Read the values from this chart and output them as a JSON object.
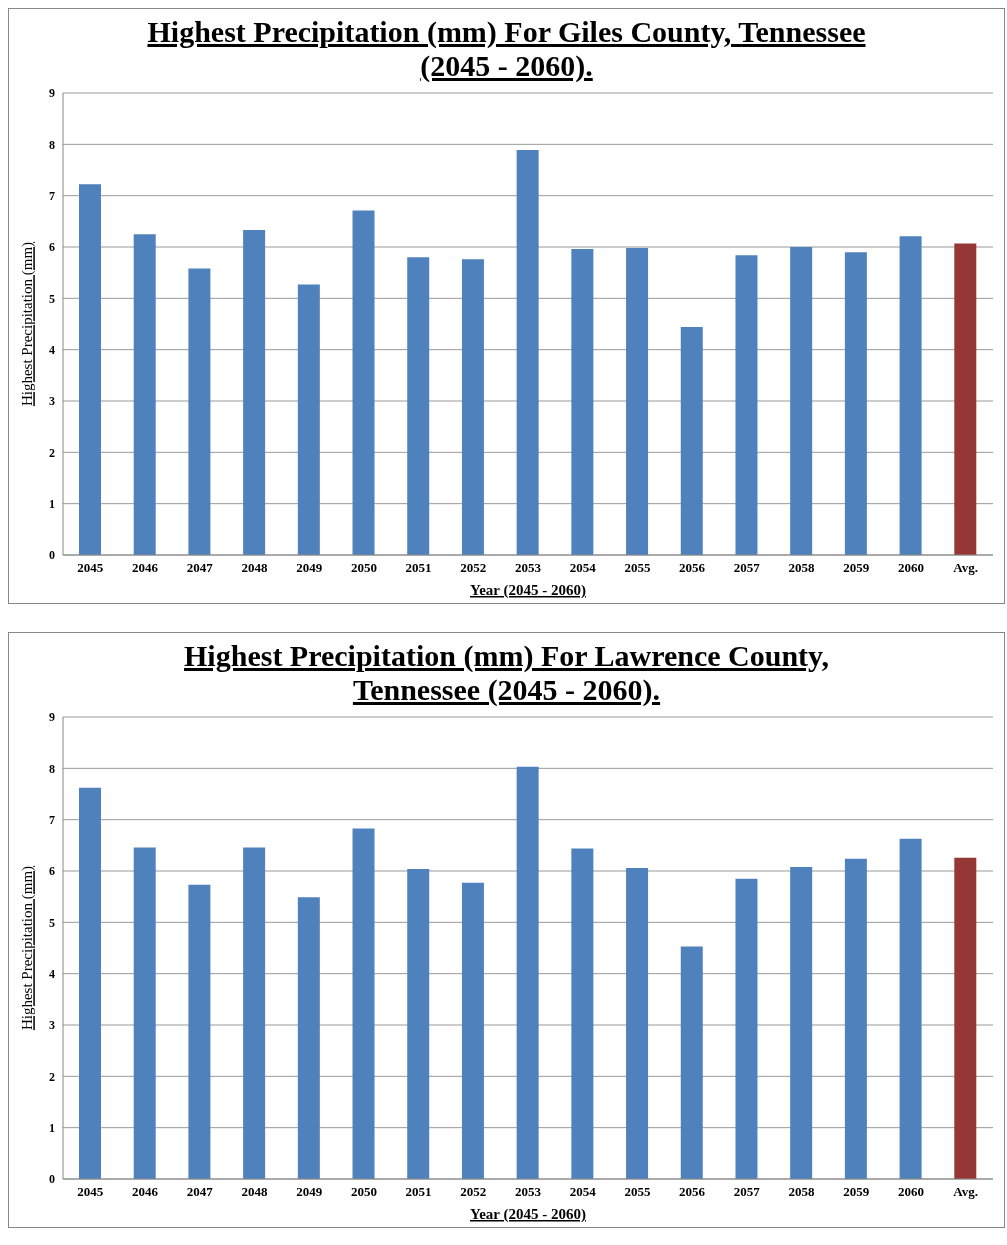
{
  "chart_data": [
    {
      "type": "bar",
      "title": "Highest Precipitation (mm) For Giles County, Tennessee (2045 - 2060).",
      "xlabel": "Year (2045 - 2060)",
      "ylabel": "Highest Precipitation (mm)",
      "categories": [
        "2045",
        "2046",
        "2047",
        "2048",
        "2049",
        "2050",
        "2051",
        "2052",
        "2053",
        "2054",
        "2055",
        "2056",
        "2057",
        "2058",
        "2059",
        "2060",
        "Avg."
      ],
      "values": [
        7.22,
        6.25,
        5.58,
        6.33,
        5.27,
        6.71,
        5.8,
        5.76,
        7.89,
        5.96,
        5.98,
        4.44,
        5.84,
        6.0,
        5.9,
        6.21,
        6.07
      ],
      "colors": [
        "#4f81bd",
        "#4f81bd",
        "#4f81bd",
        "#4f81bd",
        "#4f81bd",
        "#4f81bd",
        "#4f81bd",
        "#4f81bd",
        "#4f81bd",
        "#4f81bd",
        "#4f81bd",
        "#4f81bd",
        "#4f81bd",
        "#4f81bd",
        "#4f81bd",
        "#4f81bd",
        "#953735"
      ],
      "ylim": [
        0,
        9
      ],
      "yticks": [
        0,
        1,
        2,
        3,
        4,
        5,
        6,
        7,
        8,
        9
      ],
      "grid": "y"
    },
    {
      "type": "bar",
      "title": "Highest Precipitation (mm) For Lawrence County, Tennessee (2045 - 2060).",
      "xlabel": "Year (2045 - 2060)",
      "ylabel": "Highest Precipitation (mm)",
      "categories": [
        "2045",
        "2046",
        "2047",
        "2048",
        "2049",
        "2050",
        "2051",
        "2052",
        "2053",
        "2054",
        "2055",
        "2056",
        "2057",
        "2058",
        "2059",
        "2060",
        "Avg."
      ],
      "values": [
        7.62,
        6.46,
        5.73,
        6.46,
        5.49,
        6.83,
        6.04,
        5.77,
        8.03,
        6.44,
        6.06,
        4.53,
        5.85,
        6.08,
        6.24,
        6.63,
        6.26
      ],
      "colors": [
        "#4f81bd",
        "#4f81bd",
        "#4f81bd",
        "#4f81bd",
        "#4f81bd",
        "#4f81bd",
        "#4f81bd",
        "#4f81bd",
        "#4f81bd",
        "#4f81bd",
        "#4f81bd",
        "#4f81bd",
        "#4f81bd",
        "#4f81bd",
        "#4f81bd",
        "#4f81bd",
        "#953735"
      ],
      "ylim": [
        0,
        9
      ],
      "yticks": [
        0,
        1,
        2,
        3,
        4,
        5,
        6,
        7,
        8,
        9
      ],
      "grid": "y"
    }
  ]
}
